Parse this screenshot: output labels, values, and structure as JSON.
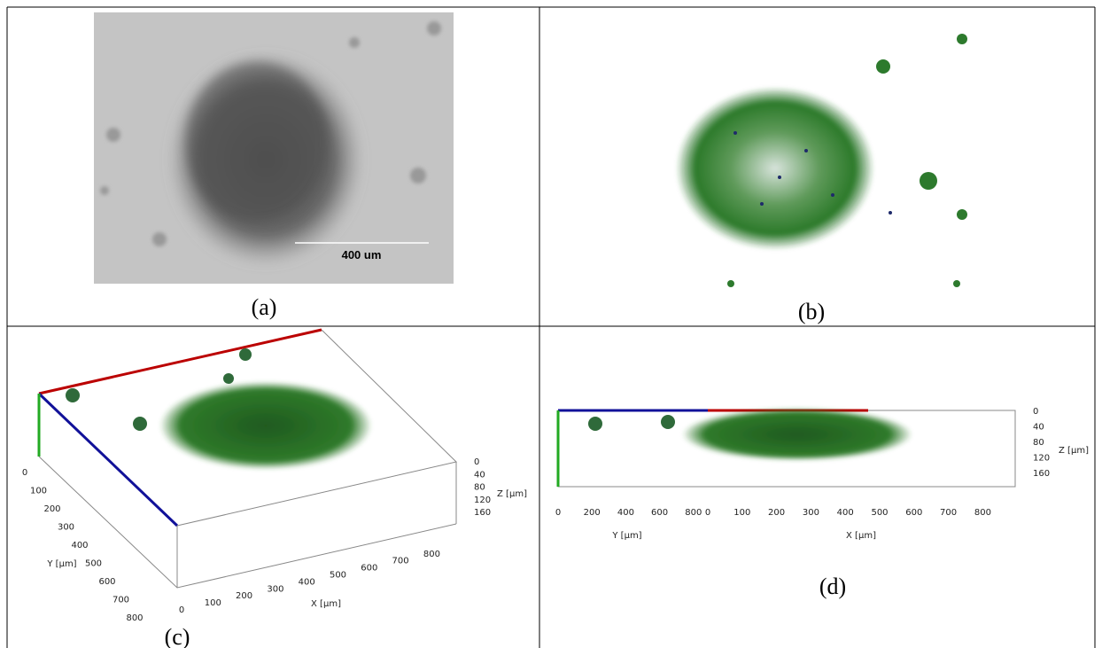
{
  "panels": [
    {
      "label": "(a)",
      "scale_bar": "400 um"
    },
    {
      "label": "(b)"
    },
    {
      "label": "(c)",
      "y_axis": {
        "title": "Y [µm]",
        "ticks": [
          0,
          100,
          200,
          300,
          400,
          500,
          600,
          700,
          800
        ]
      },
      "x_axis": {
        "title": "X [µm]",
        "ticks": [
          0,
          100,
          200,
          300,
          400,
          500,
          600,
          700,
          800
        ]
      },
      "z_axis": {
        "title": "Z [µm]",
        "ticks": [
          0,
          40,
          80,
          120,
          160
        ]
      }
    },
    {
      "label": "(d)",
      "y_axis": {
        "title": "Y [µm]",
        "ticks": [
          0,
          200,
          400,
          600,
          800
        ]
      },
      "x_axis": {
        "title": "X [µm]",
        "ticks": [
          0,
          100,
          200,
          300,
          400,
          500,
          600,
          700,
          800
        ]
      },
      "z_axis": {
        "title": "Z [µm]",
        "ticks": [
          0,
          40,
          80,
          120,
          160
        ]
      }
    }
  ]
}
